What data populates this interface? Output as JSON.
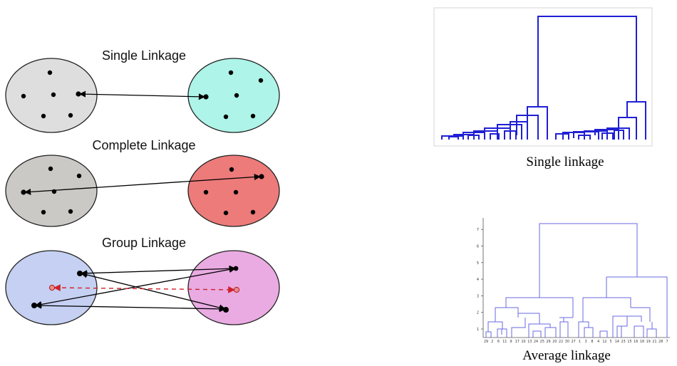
{
  "linkage_diagrams": [
    {
      "title": "Single Linkage",
      "left_color": "#dedede",
      "right_color": "#aef4e8",
      "arrow_color": "#000000"
    },
    {
      "title": "Complete Linkage",
      "left_color": "#cbc9c6",
      "right_color": "#ec7b7a",
      "arrow_color": "#000000"
    },
    {
      "title": "Group Linkage",
      "left_color": "#c5d0f2",
      "right_color": "#e9abe2",
      "arrow_color": "#000000",
      "centroid_arrow_color": "#d0202a"
    }
  ],
  "dendrograms": {
    "single": {
      "caption": "Single linkage",
      "line_color": "#1f1fd6"
    },
    "average": {
      "caption": "Average linkage",
      "line_color": "#6a6ae0",
      "y_ticks": [
        "1",
        "2",
        "3",
        "4",
        "5",
        "6",
        "7"
      ],
      "leaf_labels": [
        "29",
        "2",
        "6",
        "11",
        "9",
        "17",
        "10",
        "13",
        "24",
        "25",
        "26",
        "20",
        "22",
        "30",
        "27",
        "1",
        "3",
        "8",
        "4",
        "12",
        "5",
        "14",
        "23",
        "15",
        "16",
        "18",
        "19",
        "21",
        "28",
        "7"
      ]
    }
  }
}
